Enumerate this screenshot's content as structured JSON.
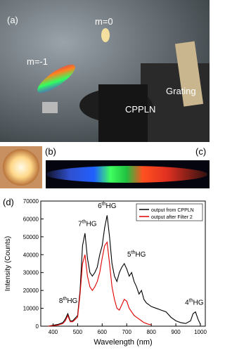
{
  "figure": {
    "panel_a": {
      "label": "(a)",
      "m0": "m=0",
      "m1": "m=-1",
      "grating": "Grating",
      "crystal": "CPPLN"
    },
    "panel_b": {
      "label": "(b)"
    },
    "panel_c": {
      "label": "(c)"
    },
    "panel_d": {
      "label": "(d)"
    }
  },
  "chart_data": {
    "type": "line",
    "x_label": "Wavelength (nm)",
    "y_label": "Intensity (Counts)",
    "x": [
      380,
      400,
      420,
      440,
      450,
      460,
      470,
      480,
      500,
      510,
      520,
      530,
      540,
      550,
      560,
      570,
      580,
      590,
      600,
      610,
      620,
      630,
      640,
      650,
      660,
      670,
      680,
      690,
      700,
      710,
      720,
      730,
      740,
      750,
      760,
      770,
      780,
      790,
      800,
      820,
      840,
      860,
      880,
      900,
      920,
      940,
      960,
      970,
      980,
      990,
      1000
    ],
    "series": [
      {
        "name": "output from CPPLN",
        "color": "#000000",
        "values": [
          0,
          500,
          1000,
          2000,
          4000,
          7000,
          3000,
          3000,
          6000,
          20000,
          45000,
          52000,
          38000,
          30000,
          28000,
          30000,
          33000,
          40000,
          45000,
          55000,
          62000,
          50000,
          35000,
          28000,
          25000,
          30000,
          33000,
          35000,
          32000,
          28000,
          30000,
          25000,
          22000,
          18000,
          20000,
          15000,
          13000,
          12000,
          11000,
          10000,
          9000,
          8000,
          5000,
          3000,
          2000,
          1500,
          3000,
          7000,
          8000,
          4000,
          1000
        ]
      },
      {
        "name": "output after Filter 2",
        "color": "#e00000",
        "values": [
          0,
          300,
          600,
          1500,
          3000,
          6000,
          2500,
          2500,
          5000,
          18000,
          35000,
          40000,
          28000,
          22000,
          20000,
          22000,
          25000,
          30000,
          38000,
          45000,
          47000,
          35000,
          22000,
          15000,
          10000,
          9000,
          12000,
          15000,
          14000,
          10000,
          8000,
          6000,
          5000,
          4000,
          3000,
          2000,
          1500,
          1000,
          800,
          null,
          null,
          null,
          null,
          null,
          null,
          null,
          null,
          null,
          null,
          null,
          null
        ]
      }
    ],
    "xlim": [
      350,
      1020
    ],
    "xticks": [
      400,
      500,
      600,
      700,
      800,
      900,
      1000
    ],
    "ylim": [
      0,
      70000
    ],
    "yticks": [
      0,
      10000,
      20000,
      30000,
      40000,
      50000,
      60000,
      70000
    ],
    "legend": "top-right",
    "annotations": [
      [
        "8",
        "th",
        "HG"
      ],
      [
        "7",
        "th",
        "HG"
      ],
      [
        "6",
        "th",
        "HG"
      ],
      [
        "5",
        "th",
        "HG"
      ],
      [
        "4",
        "th",
        "HG"
      ]
    ]
  }
}
